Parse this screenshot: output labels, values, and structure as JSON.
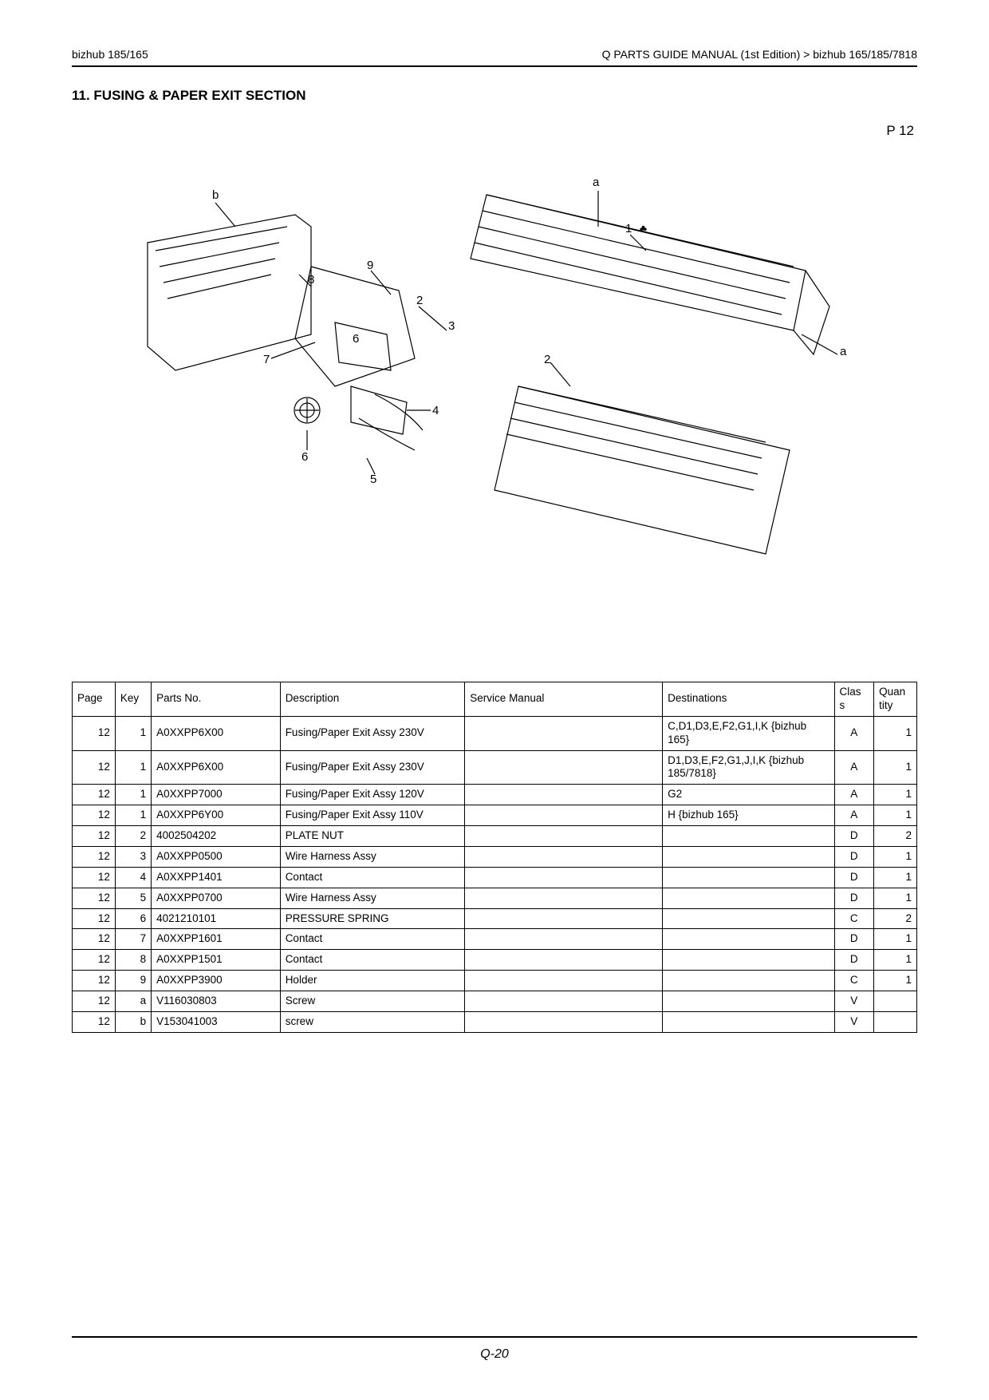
{
  "header": {
    "left": "bizhub 185/165",
    "right": "Q  PARTS GUIDE MANUAL (1st Edition) >    bizhub 165/185/7818"
  },
  "section_title": "11.   FUSING & PAPER EXIT SECTION",
  "page_label": "P 12",
  "footer": "Q-20",
  "diagram": {
    "callouts": {
      "b": "b",
      "a_top": "a",
      "a_right": "a",
      "n1": "1",
      "club": "♣",
      "n2_left": "2",
      "n2_right": "2",
      "n3": "3",
      "n4": "4",
      "n5": "5",
      "n6_top": "6",
      "n6_bottom": "6",
      "n7": "7",
      "n8": "8",
      "n9": "9"
    }
  },
  "table": {
    "headers": {
      "page": "Page",
      "key": "Key",
      "parts": "Parts No.",
      "desc": "Description",
      "sm": "Service Manual",
      "dest": "Destinations",
      "class": "Clas\ns",
      "qty": "Quan\ntity"
    },
    "rows": [
      {
        "page": "12",
        "key": "1",
        "parts": "A0XXPP6X00",
        "desc": "Fusing/Paper Exit Assy 230V",
        "sm": "",
        "dest": "C,D1,D3,E,F2,G1,I,K {bizhub 165}",
        "class": "A",
        "qty": "1"
      },
      {
        "page": "12",
        "key": "1",
        "parts": "A0XXPP6X00",
        "desc": "Fusing/Paper Exit Assy 230V",
        "sm": "",
        "dest": "D1,D3,E,F2,G1,J,I,K {bizhub 185/7818}",
        "class": "A",
        "qty": "1"
      },
      {
        "page": "12",
        "key": "1",
        "parts": "A0XXPP7000",
        "desc": "Fusing/Paper Exit Assy 120V",
        "sm": "",
        "dest": "G2",
        "class": "A",
        "qty": "1"
      },
      {
        "page": "12",
        "key": "1",
        "parts": "A0XXPP6Y00",
        "desc": "Fusing/Paper Exit Assy 110V",
        "sm": "",
        "dest": "H {bizhub 165}",
        "class": "A",
        "qty": "1"
      },
      {
        "page": "12",
        "key": "2",
        "parts": "4002504202",
        "desc": "PLATE NUT",
        "sm": "",
        "dest": "",
        "class": "D",
        "qty": "2"
      },
      {
        "page": "12",
        "key": "3",
        "parts": "A0XXPP0500",
        "desc": "Wire Harness Assy",
        "sm": "",
        "dest": "",
        "class": "D",
        "qty": "1"
      },
      {
        "page": "12",
        "key": "4",
        "parts": "A0XXPP1401",
        "desc": "Contact",
        "sm": "",
        "dest": "",
        "class": "D",
        "qty": "1"
      },
      {
        "page": "12",
        "key": "5",
        "parts": "A0XXPP0700",
        "desc": "Wire Harness Assy",
        "sm": "",
        "dest": "",
        "class": "D",
        "qty": "1"
      },
      {
        "page": "12",
        "key": "6",
        "parts": "4021210101",
        "desc": "PRESSURE SPRING",
        "sm": "",
        "dest": "",
        "class": "C",
        "qty": "2"
      },
      {
        "page": "12",
        "key": "7",
        "parts": "A0XXPP1601",
        "desc": "Contact",
        "sm": "",
        "dest": "",
        "class": "D",
        "qty": "1"
      },
      {
        "page": "12",
        "key": "8",
        "parts": "A0XXPP1501",
        "desc": "Contact",
        "sm": "",
        "dest": "",
        "class": "D",
        "qty": "1"
      },
      {
        "page": "12",
        "key": "9",
        "parts": "A0XXPP3900",
        "desc": "Holder",
        "sm": "",
        "dest": "",
        "class": "C",
        "qty": "1"
      },
      {
        "page": "12",
        "key": "a",
        "parts": "V116030803",
        "desc": "Screw",
        "sm": "",
        "dest": "",
        "class": "V",
        "qty": ""
      },
      {
        "page": "12",
        "key": "b",
        "parts": "V153041003",
        "desc": "screw",
        "sm": "",
        "dest": "",
        "class": "V",
        "qty": ""
      }
    ]
  }
}
